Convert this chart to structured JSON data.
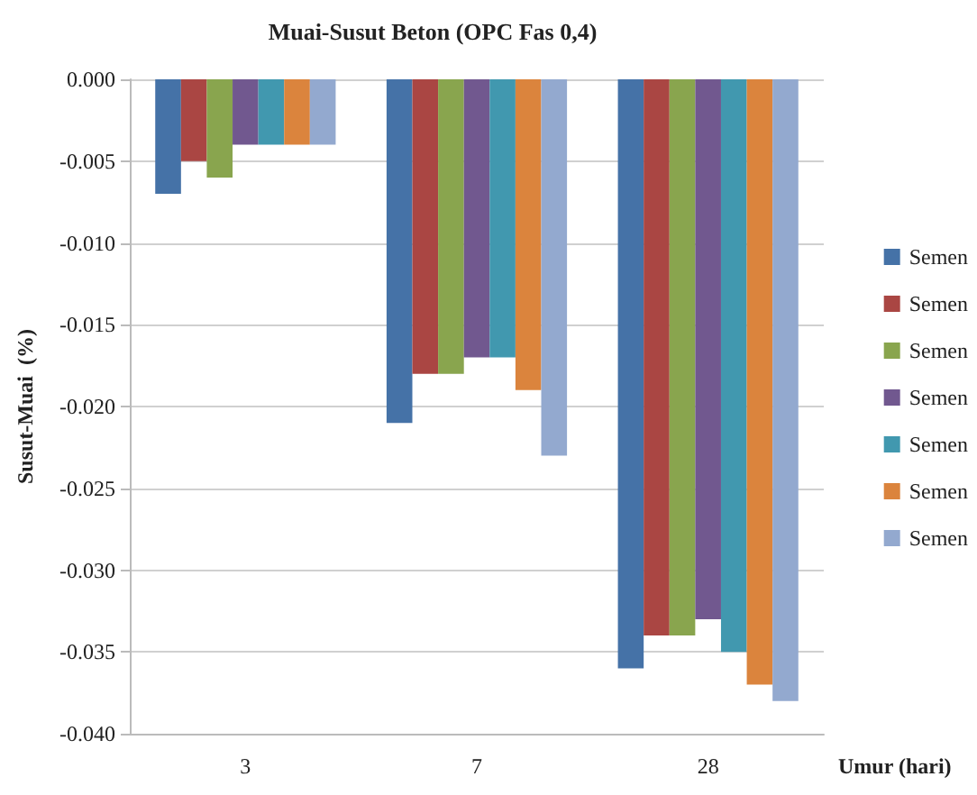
{
  "chart_data": {
    "type": "bar",
    "title": "Muai-Susut Beton (OPC Fas 0,4)",
    "xlabel": "Umur (hari)",
    "ylabel": "Susut-Muai  (%)",
    "categories": [
      "3",
      "7",
      "28"
    ],
    "series": [
      {
        "name": "Semen",
        "color": "#4572a7",
        "values": [
          -0.007,
          -0.021,
          -0.036
        ]
      },
      {
        "name": "Semen",
        "color": "#aa4643",
        "values": [
          -0.005,
          -0.018,
          -0.034
        ]
      },
      {
        "name": "Semen",
        "color": "#89a54e",
        "values": [
          -0.006,
          -0.018,
          -0.034
        ]
      },
      {
        "name": "Semen",
        "color": "#71588f",
        "values": [
          -0.004,
          -0.017,
          -0.033
        ]
      },
      {
        "name": "Semen",
        "color": "#4198af",
        "values": [
          -0.004,
          -0.017,
          -0.035
        ]
      },
      {
        "name": "Semen",
        "color": "#db843d",
        "values": [
          -0.004,
          -0.019,
          -0.037
        ]
      },
      {
        "name": "Semen",
        "color": "#93a9cf",
        "values": [
          -0.004,
          -0.023,
          -0.038
        ]
      }
    ],
    "ylim": [
      -0.04,
      0
    ],
    "yticks": [
      {
        "value": -0.04,
        "label": "-0.040"
      },
      {
        "value": -0.035,
        "label": "-0.035"
      },
      {
        "value": -0.03,
        "label": "-0.030"
      },
      {
        "value": -0.025,
        "label": "-0.025"
      },
      {
        "value": -0.02,
        "label": "-0.020"
      },
      {
        "value": -0.015,
        "label": "-0.015"
      },
      {
        "value": -0.01,
        "label": "-0.010"
      },
      {
        "value": -0.005,
        "label": "-0.005"
      },
      {
        "value": 0,
        "label": "0.000"
      }
    ],
    "grid": "y",
    "legend": "right"
  }
}
